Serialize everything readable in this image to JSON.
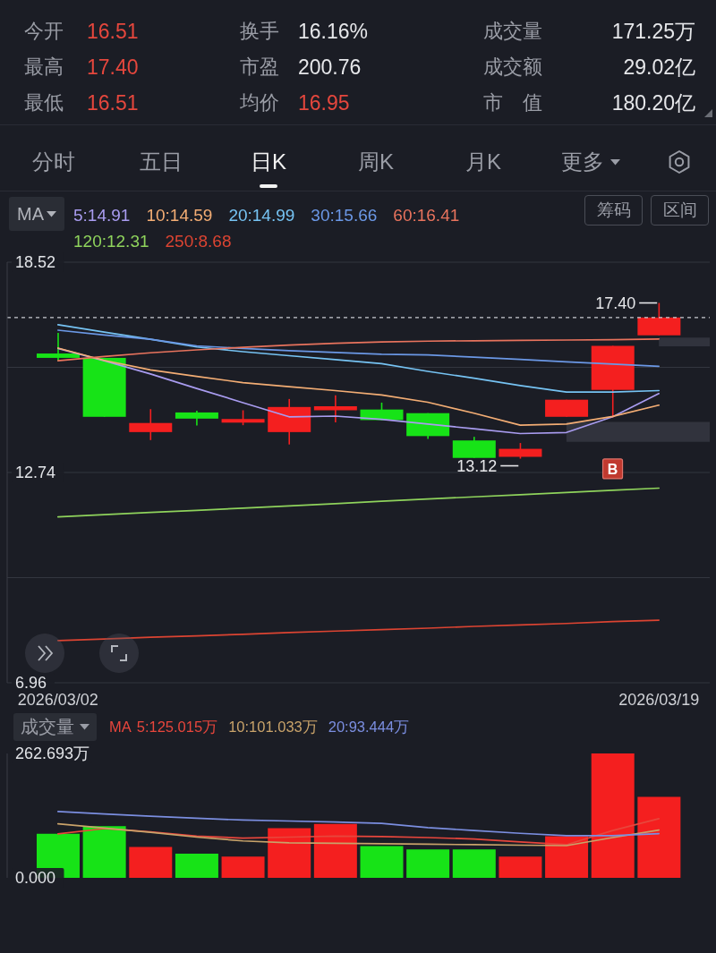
{
  "chart_data": [
    {
      "type": "other",
      "annotations": [
        "今开",
        "16.51",
        "换手",
        "16.16%",
        "成交量",
        "171.25万",
        "最高",
        "17.40",
        "市盈",
        "200.76",
        "成交额",
        "29.02亿",
        "最低",
        "16.51",
        "均价",
        "16.95",
        "市　值",
        "180.20亿"
      ],
      "colors": [
        "#9a9da6",
        "#e5473d",
        "#9a9da6",
        "#e6e7ea",
        "#9a9da6",
        "#e6e7ea",
        "#9a9da6",
        "#e5473d",
        "#9a9da6",
        "#e6e7ea",
        "#9a9da6",
        "#e6e7ea",
        "#9a9da6",
        "#e5473d",
        "#9a9da6",
        "#e5473d",
        "#9a9da6",
        "#e6e7ea"
      ]
    },
    {
      "type": "other",
      "annotations": [
        "分时",
        "五日",
        "日K",
        "周K",
        "月K",
        "更多"
      ]
    },
    {
      "type": "candlestick",
      "categories": [
        "2026/03/02",
        null,
        null,
        null,
        null,
        null,
        null,
        null,
        null,
        null,
        null,
        null,
        null,
        "2026/03/19"
      ],
      "ohlc": [
        [
          16.01,
          16.58,
          15.81,
          15.89
        ],
        [
          15.89,
          15.89,
          14.27,
          14.27
        ],
        [
          13.85,
          14.48,
          13.63,
          14.1
        ],
        [
          14.39,
          14.44,
          14.03,
          14.22
        ],
        [
          14.11,
          14.45,
          14.04,
          14.21
        ],
        [
          13.85,
          14.76,
          13.51,
          14.54
        ],
        [
          14.45,
          14.86,
          14.12,
          14.56
        ],
        [
          14.47,
          14.66,
          14.18,
          14.18
        ],
        [
          14.37,
          14.37,
          13.66,
          13.74
        ],
        [
          13.62,
          13.72,
          13.14,
          13.14
        ],
        [
          13.17,
          13.55,
          13.12,
          13.39
        ],
        [
          14.27,
          14.74,
          14.27,
          14.74
        ],
        [
          15.01,
          16.22,
          14.25,
          16.22
        ],
        [
          16.51,
          17.4,
          16.51,
          17.0
        ]
      ],
      "colors": [
        "#17e317",
        "#17e317",
        "#f41f1f",
        "#17e317",
        "#f41f1f",
        "#f41f1f",
        "#f41f1f",
        "#17e317",
        "#17e317",
        "#17e317",
        "#f41f1f",
        "#f41f1f",
        "#f41f1f",
        "#f41f1f"
      ],
      "series": [
        {
          "type": "line",
          "name": "5:14.91",
          "color": "#a99cf0",
          "values": [
            16.15,
            15.81,
            15.45,
            15.05,
            14.66,
            14.27,
            14.29,
            14.2,
            14.07,
            13.94,
            13.81,
            13.84,
            14.27,
            14.91
          ]
        },
        {
          "type": "line",
          "name": "10:14.59",
          "color": "#f3ad74",
          "values": [
            16.16,
            15.82,
            15.56,
            15.38,
            15.21,
            15.1,
            14.99,
            14.87,
            14.67,
            14.37,
            14.04,
            14.07,
            14.28,
            14.59
          ]
        },
        {
          "type": "line",
          "name": "20:14.99",
          "color": "#76c3f3",
          "values": [
            16.8,
            16.6,
            16.4,
            16.19,
            16.06,
            15.95,
            15.84,
            15.73,
            15.52,
            15.33,
            15.13,
            14.95,
            14.95,
            14.99
          ]
        },
        {
          "type": "line",
          "name": "30:15.66",
          "color": "#6b98e6",
          "values": [
            16.65,
            16.52,
            16.4,
            16.22,
            16.15,
            16.09,
            16.04,
            15.99,
            15.97,
            15.91,
            15.85,
            15.78,
            15.72,
            15.66
          ]
        },
        {
          "type": "line",
          "name": "60:16.41",
          "color": "#e8735d",
          "values": [
            15.81,
            15.93,
            16.03,
            16.11,
            16.18,
            16.24,
            16.29,
            16.33,
            16.35,
            16.36,
            16.37,
            16.38,
            16.39,
            16.41
          ]
        },
        {
          "type": "line",
          "name": "120:12.31",
          "color": "#8fd35c",
          "values": [
            11.52,
            11.58,
            11.64,
            11.7,
            11.76,
            11.82,
            11.88,
            11.95,
            12.01,
            12.07,
            12.13,
            12.19,
            12.25,
            12.31
          ]
        },
        {
          "type": "line",
          "name": "250:8.68",
          "color": "#dc4432",
          "values": [
            8.12,
            8.16,
            8.21,
            8.25,
            8.29,
            8.34,
            8.38,
            8.42,
            8.46,
            8.51,
            8.55,
            8.59,
            8.64,
            8.68
          ]
        },
        {
          "type": "scatter",
          "name": "B",
          "color": "#c0392f",
          "marker": "square",
          "values": [
            null,
            null,
            null,
            null,
            null,
            null,
            null,
            null,
            null,
            null,
            null,
            null,
            12.84,
            null
          ]
        }
      ],
      "legend_title": "MA",
      "legend": "top left",
      "annotations": [
        "筹码",
        "区间",
        {
          "text": "17.40",
          "x": "2026/03/19",
          "y": 17.4
        },
        {
          "text": "13.12",
          "y": 13.12
        }
      ],
      "ylim": [
        6.96,
        18.52
      ],
      "yticks": [
        18.52,
        {
          "value": 15.63,
          "label": null
        },
        12.74,
        {
          "value": 9.85,
          "label": null
        },
        6.96
      ],
      "grid": "y",
      "ref_lines": [
        {
          "axis": "y",
          "value": 17.0,
          "line_style": "dashed",
          "color": "#c9ccd2"
        }
      ],
      "bands": [
        {
          "axis": "y",
          "from": 16.21,
          "to": 16.45,
          "color": "#3a3d47"
        },
        {
          "axis": "y",
          "from": 13.58,
          "to": 14.13,
          "color": "#3a3d47"
        }
      ]
    },
    {
      "type": "bar",
      "title": "成交量",
      "legend_title": "MA",
      "legend": "top left",
      "tick_labels": "y",
      "categories": [
        "2026/03/02",
        null,
        null,
        null,
        null,
        null,
        null,
        null,
        null,
        null,
        null,
        null,
        null,
        "2026/03/19"
      ],
      "series": [
        {
          "type": "bar",
          "colors": [
            "#17e317",
            "#17e317",
            "#f41f1f",
            "#17e317",
            "#f41f1f",
            "#f41f1f",
            "#f41f1f",
            "#17e317",
            "#17e317",
            "#17e317",
            "#f41f1f",
            "#f41f1f",
            "#f41f1f",
            "#f41f1f"
          ],
          "values": [
            93,
            109,
            65,
            51,
            45,
            105,
            114,
            67,
            60,
            60,
            45,
            88,
            262.693,
            171.25
          ]
        },
        {
          "type": "line",
          "name": "5:125.015万",
          "color": "#e8463c",
          "values": [
            93,
            104,
            97,
            88,
            84,
            86,
            88,
            87,
            85,
            82,
            76,
            70,
            100,
            125.015
          ]
        },
        {
          "type": "line",
          "name": "10:101.033万",
          "color": "#c9a36a",
          "values": [
            114,
            105,
            96,
            86,
            78,
            74,
            73,
            72,
            71,
            70,
            69,
            68,
            85,
            101.033
          ]
        },
        {
          "type": "line",
          "name": "20:93.444万",
          "color": "#7b8ee0",
          "values": [
            140,
            135,
            130,
            126,
            122,
            120,
            118,
            115,
            106,
            100,
            94,
            89,
            89,
            93.444
          ]
        }
      ],
      "ylim": [
        0,
        262.693
      ],
      "yticks": [
        {
          "value": 262.693,
          "label": "262.693万"
        },
        {
          "value": 0,
          "label": "0.000"
        }
      ]
    }
  ]
}
